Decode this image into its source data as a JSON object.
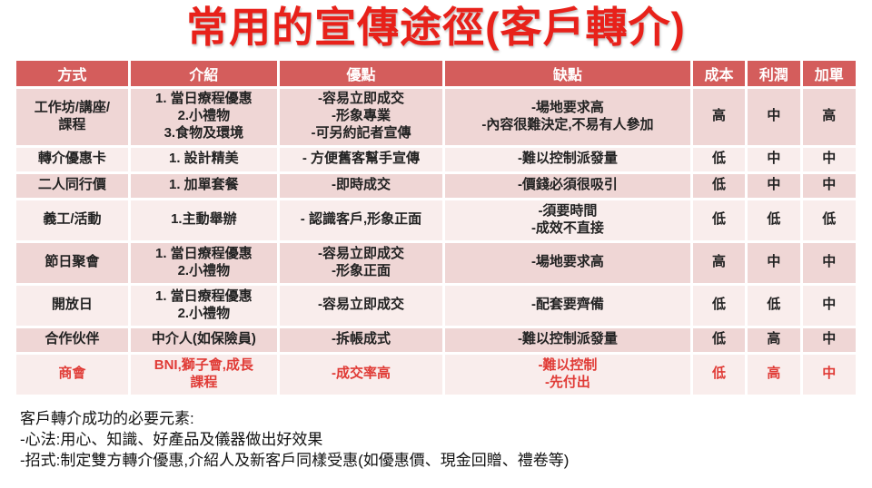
{
  "title": "常用的宣傳途徑(客戶轉介)",
  "colors": {
    "title_red": "#E8211A",
    "header_bg": "#D45D5C",
    "band_dark": "#EFD6D5",
    "band_light": "#F9EDEC",
    "highlight_text": "#E03B36"
  },
  "table": {
    "columns": [
      "方式",
      "介紹",
      "優點",
      "缺點",
      "成本",
      "利潤",
      "加單"
    ],
    "rows": [
      {
        "highlight": false,
        "cells": [
          "工作坊/講座/\n課程",
          "1. 當日療程優惠\n2.小禮物\n3.食物及環境",
          "-容易立即成交\n-形象專業\n-可另約記者宣傳",
          "-場地要求高\n-內容很難決定,不易有人參加",
          "高",
          "中",
          "高"
        ]
      },
      {
        "highlight": false,
        "cells": [
          "轉介優惠卡",
          "1. 設計精美",
          "- 方便舊客幫手宣傳",
          "-難以控制派發量",
          "低",
          "中",
          "中"
        ]
      },
      {
        "highlight": false,
        "cells": [
          "二人同行價",
          "1. 加單套餐",
          "-即時成交",
          "-價錢必須很吸引",
          "低",
          "中",
          "中"
        ]
      },
      {
        "highlight": false,
        "cells": [
          "義工/活動",
          "1.主動舉辦",
          "- 認識客戶,形象正面",
          "-須要時間\n-成效不直接",
          "低",
          "低",
          "低"
        ]
      },
      {
        "highlight": false,
        "cells": [
          "節日聚會",
          "1. 當日療程優惠\n2.小禮物",
          "-容易立即成交\n-形象正面",
          "-場地要求高",
          "高",
          "中",
          "中"
        ]
      },
      {
        "highlight": false,
        "cells": [
          "開放日",
          "1. 當日療程優惠\n2.小禮物",
          "-容易立即成交",
          "-配套要齊備",
          "低",
          "低",
          "中"
        ]
      },
      {
        "highlight": false,
        "cells": [
          "合作伙伴",
          "中介人(如保險員)",
          "-拆帳成式",
          "-難以控制派發量",
          "低",
          "高",
          "中"
        ]
      },
      {
        "highlight": true,
        "cells": [
          "商會",
          "BNI,獅子會,成長\n課程",
          "-成交率高",
          "-難以控制\n-先付出",
          "低",
          "高",
          "中"
        ]
      }
    ]
  },
  "footer": {
    "lines": [
      "客戶轉介成功的必要元素:",
      "-心法:用心、知識、好產品及儀器做出好效果",
      "-招式:制定雙方轉介優惠,介紹人及新客戶同樣受惠(如優惠價、現金回贈、禮卷等)"
    ]
  }
}
